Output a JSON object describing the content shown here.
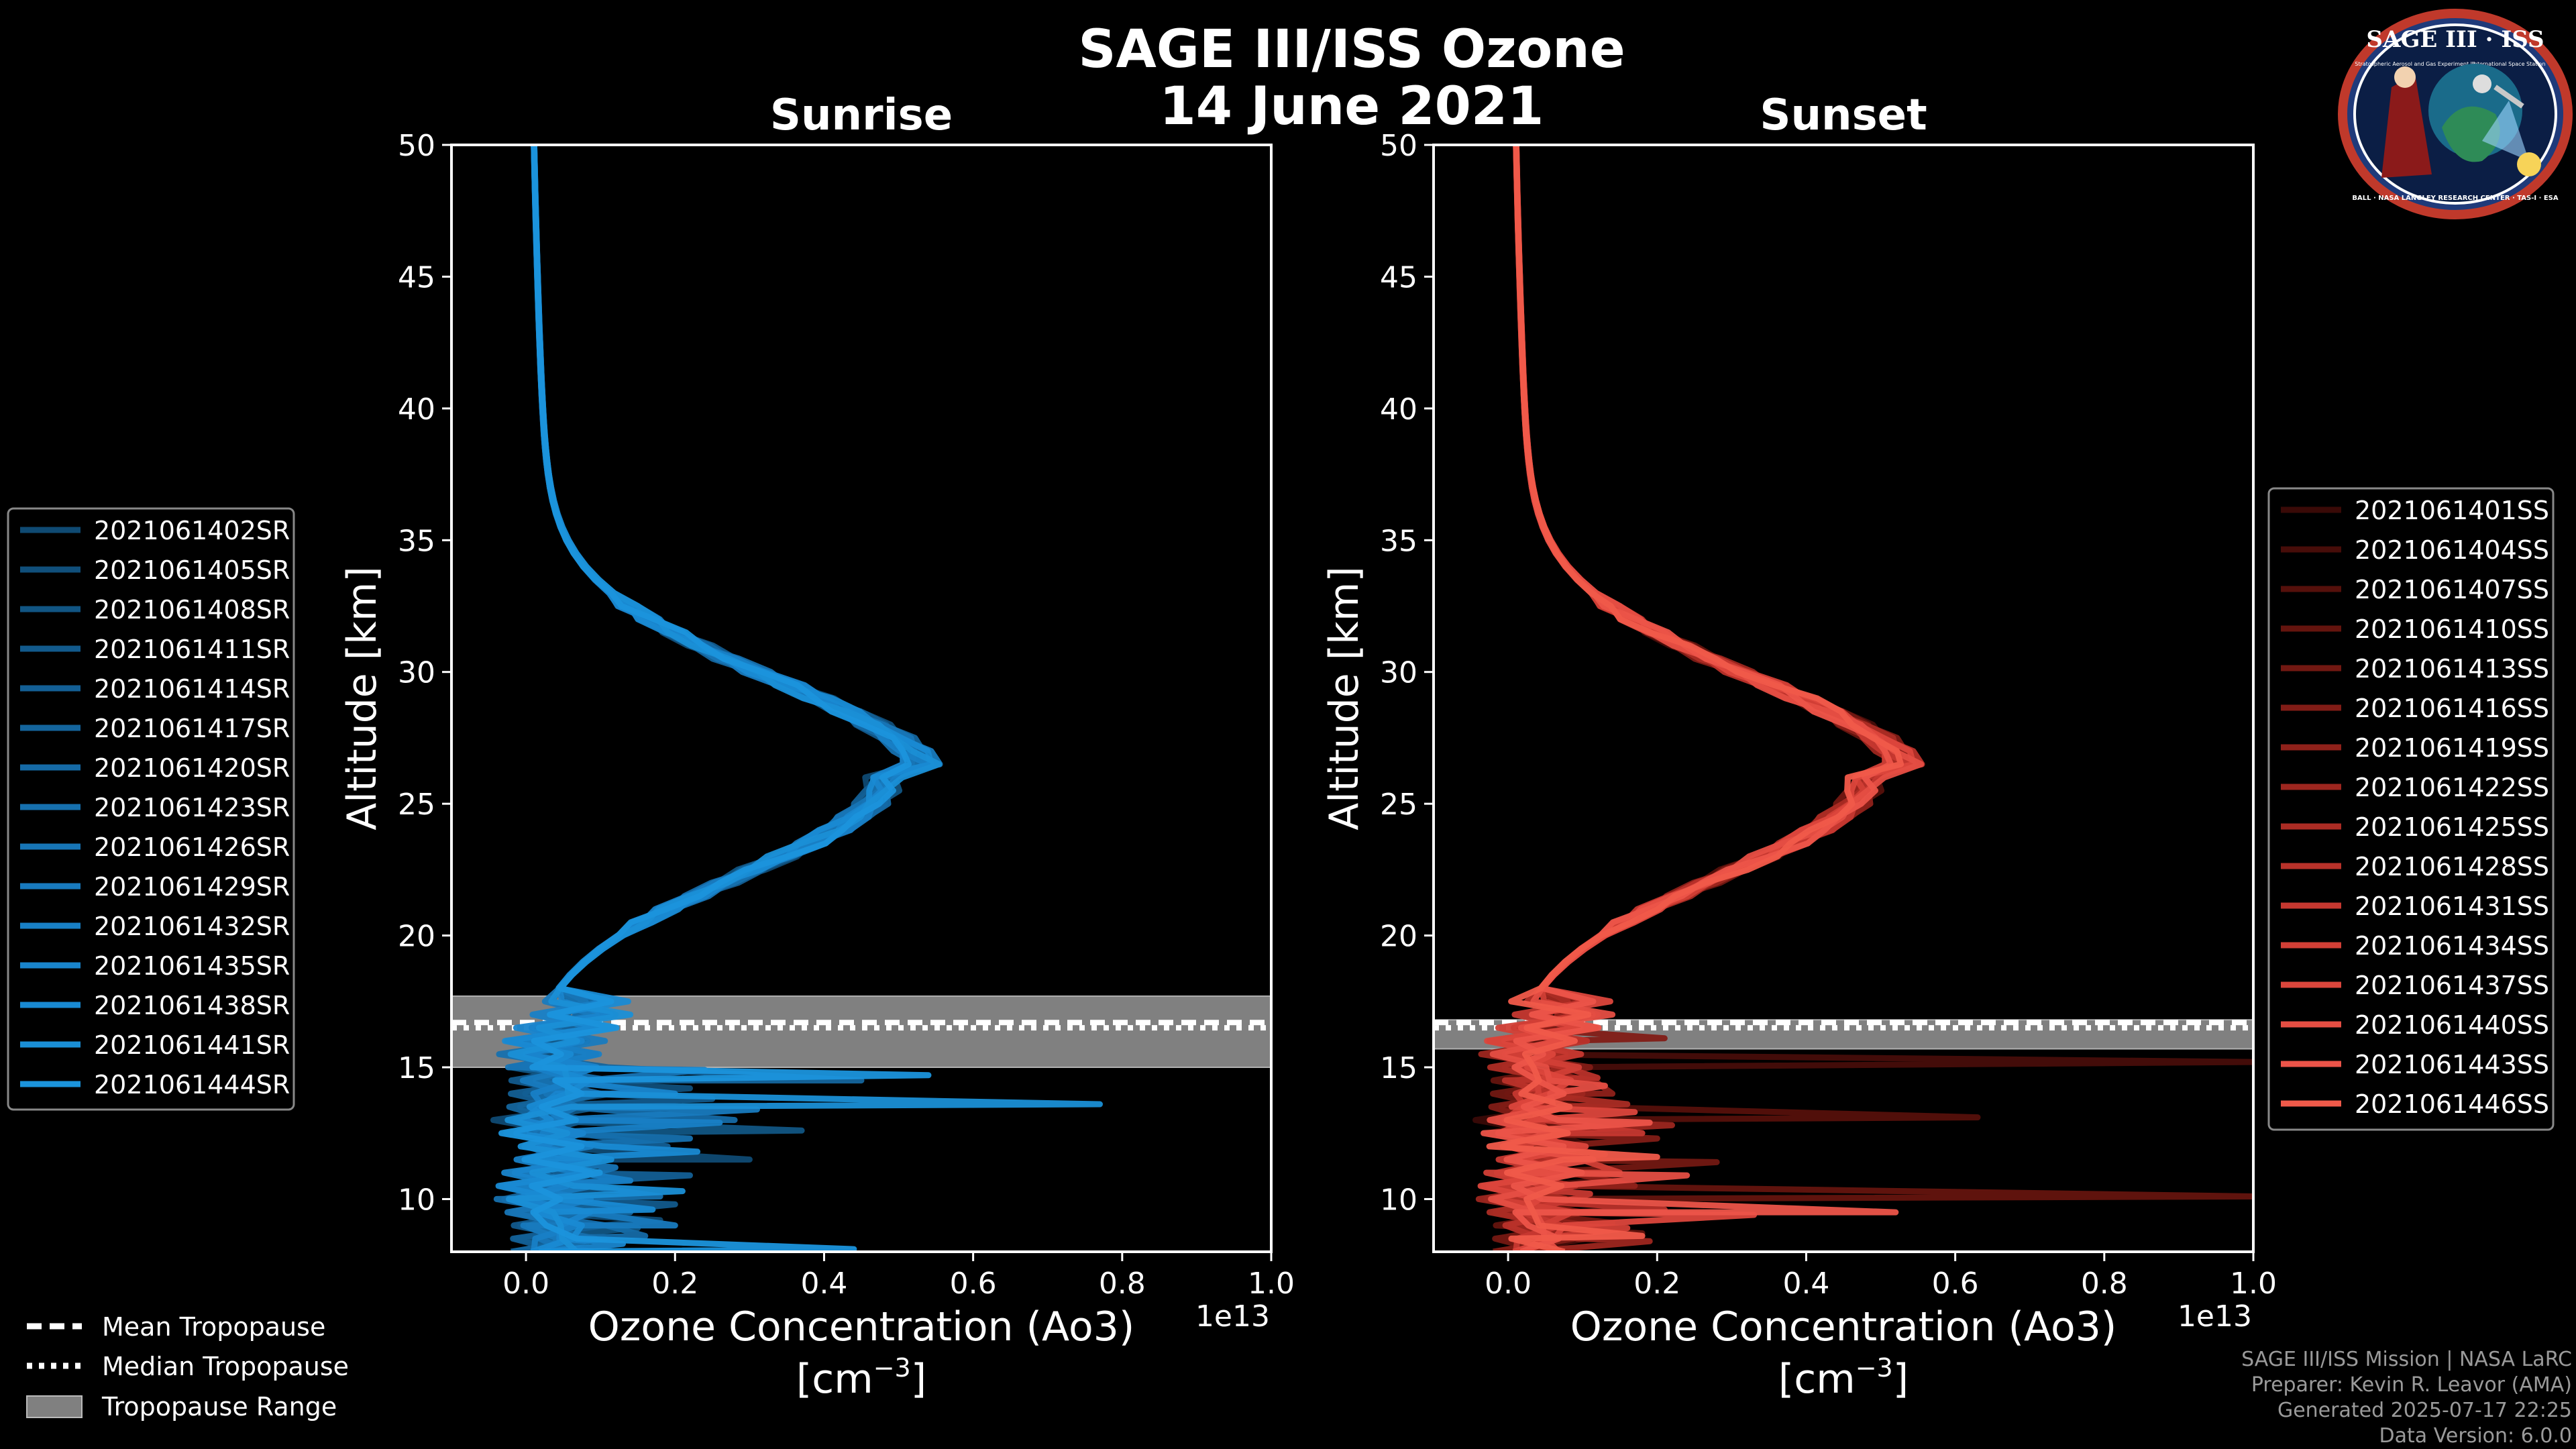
{
  "title": "SAGE III/ISS Ozone",
  "date": "14 June 2021",
  "logo": {
    "text": "SAGE III · ISS",
    "subtitle_left": "Stratospheric Aerosol and Gas Experiment III",
    "subtitle_right": "International Space Station",
    "ring_text": "BALL · NASA LANGLEY RESEARCH CENTER · TAS-I · ESA"
  },
  "colors": {
    "background": "#000000",
    "sunrise": "#1a8fd6",
    "sunset": "#f05a4a",
    "tropo_band": "#808080"
  },
  "chart_data": [
    {
      "type": "line",
      "title": "Sunrise",
      "xlabel": "Ozone Concentration (Ao3)",
      "xunit_base": "[cm",
      "xunit_exp": "−3",
      "xunit_end": "]",
      "xscale_label": "1e13",
      "ylabel": "Altitude [km]",
      "xlim": [
        -0.1,
        1.0
      ],
      "ylim": [
        8,
        50
      ],
      "xticks": [
        "0.0",
        "0.2",
        "0.4",
        "0.6",
        "0.8",
        "1.0"
      ],
      "xtick_values": [
        0.0,
        0.2,
        0.4,
        0.6,
        0.8,
        1.0
      ],
      "yticks": [
        "10",
        "15",
        "20",
        "25",
        "30",
        "35",
        "40",
        "45",
        "50"
      ],
      "ytick_values": [
        10,
        15,
        20,
        25,
        30,
        35,
        40,
        45,
        50
      ],
      "tropopause": {
        "mean": 16.7,
        "median": 16.5,
        "min": 15.0,
        "max": 17.7
      },
      "legend_position": "left",
      "series": [
        {
          "name": "2021061402SR",
          "color": "#0f4a73",
          "spikes": [
            [
              11.5,
              0.3
            ],
            [
              9.2,
              0.18
            ]
          ]
        },
        {
          "name": "2021061405SR",
          "color": "#104f7b",
          "spikes": [
            [
              14.2,
              0.22
            ],
            [
              10.4,
              0.12
            ]
          ]
        },
        {
          "name": "2021061408SR",
          "color": "#115583",
          "spikes": [
            [
              12.6,
              0.37
            ],
            [
              8.9,
              0.15
            ]
          ]
        },
        {
          "name": "2021061411SR",
          "color": "#125a8c",
          "spikes": [
            [
              13.8,
              0.25
            ],
            [
              9.8,
              0.2
            ]
          ]
        },
        {
          "name": "2021061414SR",
          "color": "#135f95",
          "spikes": [
            [
              12.0,
              0.19
            ],
            [
              10.9,
              0.22
            ]
          ]
        },
        {
          "name": "2021061417SR",
          "color": "#14659d",
          "spikes": [
            [
              14.5,
              0.45
            ],
            [
              9.5,
              0.14
            ]
          ]
        },
        {
          "name": "2021061420SR",
          "color": "#156aa6",
          "spikes": [
            [
              13.0,
              0.28
            ],
            [
              8.6,
              0.16
            ]
          ]
        },
        {
          "name": "2021061423SR",
          "color": "#1670ae",
          "spikes": [
            [
              12.3,
              0.22
            ],
            [
              10.1,
              0.18
            ]
          ]
        },
        {
          "name": "2021061426SR",
          "color": "#1775b6",
          "spikes": [
            [
              14.9,
              0.24
            ],
            [
              11.2,
              0.12
            ]
          ]
        },
        {
          "name": "2021061429SR",
          "color": "#187abe",
          "spikes": [
            [
              13.4,
              0.31
            ],
            [
              9.0,
              0.2
            ]
          ]
        },
        {
          "name": "2021061432SR",
          "color": "#1880c6",
          "spikes": [
            [
              12.9,
              0.26
            ],
            [
              10.7,
              0.14
            ]
          ]
        },
        {
          "name": "2021061435SR",
          "color": "#1985cd",
          "spikes": [
            [
              14.0,
              0.2
            ],
            [
              8.3,
              0.13
            ]
          ]
        },
        {
          "name": "2021061438SR",
          "color": "#198ad3",
          "spikes": [
            [
              11.8,
              0.23
            ],
            [
              9.6,
              0.17
            ]
          ]
        },
        {
          "name": "2021061441SR",
          "color": "#1a8fd6",
          "spikes": [
            [
              13.6,
              0.77
            ],
            [
              10.3,
              0.21
            ]
          ]
        },
        {
          "name": "2021061444SR",
          "color": "#1b94dc",
          "spikes": [
            [
              14.7,
              0.54
            ],
            [
              8.1,
              0.44
            ]
          ]
        }
      ]
    },
    {
      "type": "line",
      "title": "Sunset",
      "xlabel": "Ozone Concentration (Ao3)",
      "xunit_base": "[cm",
      "xunit_exp": "−3",
      "xunit_end": "]",
      "xscale_label": "1e13",
      "ylabel": "Altitude [km]",
      "xlim": [
        -0.1,
        1.0
      ],
      "ylim": [
        8,
        50
      ],
      "xticks": [
        "0.0",
        "0.2",
        "0.4",
        "0.6",
        "0.8",
        "1.0"
      ],
      "xtick_values": [
        0.0,
        0.2,
        0.4,
        0.6,
        0.8,
        1.0
      ],
      "yticks": [
        "10",
        "15",
        "20",
        "25",
        "30",
        "35",
        "40",
        "45",
        "50"
      ],
      "ytick_values": [
        10,
        15,
        20,
        25,
        30,
        35,
        40,
        45,
        50
      ],
      "tropopause": {
        "mean": 16.7,
        "median": 16.5,
        "min": 15.7,
        "max": 16.8
      },
      "legend_position": "right",
      "series": [
        {
          "name": "2021061401SS",
          "color": "#3a0a07",
          "spikes": [
            [
              12.1,
              0.1
            ],
            [
              9.3,
              0.08
            ]
          ]
        },
        {
          "name": "2021061404SS",
          "color": "#470d09",
          "spikes": [
            [
              15.2,
              1.0
            ],
            [
              10.8,
              0.15
            ]
          ]
        },
        {
          "name": "2021061407SS",
          "color": "#55100b",
          "spikes": [
            [
              13.1,
              0.63
            ],
            [
              9.9,
              0.12
            ]
          ]
        },
        {
          "name": "2021061410SS",
          "color": "#64140e",
          "spikes": [
            [
              10.1,
              1.0
            ],
            [
              8.7,
              0.18
            ]
          ]
        },
        {
          "name": "2021061413SS",
          "color": "#721812",
          "spikes": [
            [
              11.4,
              0.28
            ],
            [
              9.1,
              0.14
            ]
          ]
        },
        {
          "name": "2021061416SS",
          "color": "#811c16",
          "spikes": [
            [
              16.1,
              0.21
            ],
            [
              12.3,
              0.2
            ]
          ]
        },
        {
          "name": "2021061419SS",
          "color": "#8f211a",
          "spikes": [
            [
              14.0,
              0.14
            ],
            [
              10.5,
              0.17
            ]
          ]
        },
        {
          "name": "2021061422SS",
          "color": "#9d261f",
          "spikes": [
            [
              12.8,
              0.22
            ],
            [
              8.4,
              0.19
            ]
          ]
        },
        {
          "name": "2021061425SS",
          "color": "#ab2c24",
          "spikes": [
            [
              13.6,
              0.16
            ],
            [
              11.7,
              0.13
            ]
          ]
        },
        {
          "name": "2021061428SS",
          "color": "#b9322a",
          "spikes": [
            [
              14.6,
              0.12
            ],
            [
              9.6,
              0.21
            ]
          ]
        },
        {
          "name": "2021061431SS",
          "color": "#c63830",
          "spikes": [
            [
              12.5,
              0.18
            ],
            [
              10.2,
              0.11
            ]
          ]
        },
        {
          "name": "2021061434SS",
          "color": "#d23f36",
          "spikes": [
            [
              11.0,
              0.15
            ],
            [
              8.9,
              0.16
            ]
          ]
        },
        {
          "name": "2021061437SS",
          "color": "#dc463c",
          "spikes": [
            [
              13.3,
              0.17
            ],
            [
              9.4,
              0.33
            ]
          ]
        },
        {
          "name": "2021061440SS",
          "color": "#e54e43",
          "spikes": [
            [
              14.3,
              0.13
            ],
            [
              10.9,
              0.24
            ]
          ]
        },
        {
          "name": "2021061443SS",
          "color": "#ec5449",
          "spikes": [
            [
              12.9,
              0.19
            ],
            [
              9.5,
              0.52
            ]
          ]
        },
        {
          "name": "2021061446SS",
          "color": "#f05a4a",
          "spikes": [
            [
              11.6,
              0.2
            ],
            [
              8.6,
              0.18
            ]
          ]
        }
      ]
    }
  ],
  "tropo_legend": {
    "mean": "Mean Tropopause",
    "median": "Median Tropopause",
    "range": "Tropopause Range"
  },
  "footer": {
    "line1": "SAGE III/ISS Mission | NASA LaRC",
    "line2": "Preparer: Kevin R. Leavor (AMA)",
    "line3": "Generated 2025-07-17 22:25",
    "line4": "Data Version: 6.0.0"
  }
}
